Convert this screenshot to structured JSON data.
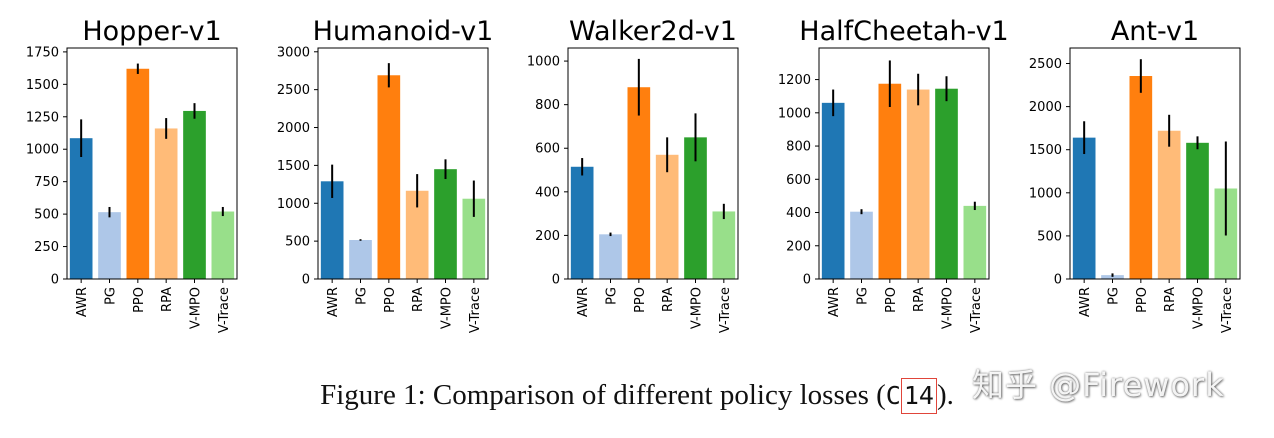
{
  "chart_data": [
    {
      "type": "bar",
      "title": "Hopper-v1",
      "categories": [
        "AWR",
        "PG",
        "PPO",
        "RPA",
        "V-MPO",
        "V-Trace"
      ],
      "values": [
        1085,
        515,
        1620,
        1160,
        1295,
        520
      ],
      "errors": [
        145,
        40,
        40,
        80,
        60,
        35
      ],
      "yticks": [
        0,
        250,
        500,
        750,
        1000,
        1250,
        1500,
        1750
      ],
      "ylim": [
        0,
        1780
      ],
      "xlabel": "",
      "ylabel": ""
    },
    {
      "type": "bar",
      "title": "Humanoid-v1",
      "categories": [
        "AWR",
        "PG",
        "PPO",
        "RPA",
        "V-MPO",
        "V-Trace"
      ],
      "values": [
        1290,
        515,
        2690,
        1165,
        1450,
        1060
      ],
      "errors": [
        220,
        10,
        160,
        220,
        130,
        240
      ],
      "yticks": [
        0,
        500,
        1000,
        1500,
        2000,
        2500,
        3000
      ],
      "ylim": [
        0,
        3050
      ],
      "xlabel": "",
      "ylabel": ""
    },
    {
      "type": "bar",
      "title": "Walker2d-v1",
      "categories": [
        "AWR",
        "PG",
        "PPO",
        "RPA",
        "V-MPO",
        "V-Trace"
      ],
      "values": [
        515,
        205,
        880,
        570,
        650,
        310
      ],
      "errors": [
        40,
        8,
        130,
        80,
        110,
        35
      ],
      "yticks": [
        0,
        200,
        400,
        600,
        800,
        1000
      ],
      "ylim": [
        0,
        1060
      ],
      "xlabel": "",
      "ylabel": ""
    },
    {
      "type": "bar",
      "title": "HalfCheetah-v1",
      "categories": [
        "AWR",
        "PG",
        "PPO",
        "RPA",
        "V-MPO",
        "V-Trace"
      ],
      "values": [
        1060,
        405,
        1175,
        1140,
        1145,
        440
      ],
      "errors": [
        80,
        15,
        140,
        95,
        75,
        25
      ],
      "yticks": [
        0,
        200,
        400,
        600,
        800,
        1000,
        1200
      ],
      "ylim": [
        0,
        1390
      ],
      "xlabel": "",
      "ylabel": ""
    },
    {
      "type": "bar",
      "title": "Ant-v1",
      "categories": [
        "AWR",
        "PG",
        "PPO",
        "RPA",
        "V-MPO",
        "V-Trace"
      ],
      "values": [
        1640,
        45,
        2355,
        1720,
        1580,
        1050
      ],
      "errors": [
        190,
        20,
        195,
        185,
        75,
        545
      ],
      "yticks": [
        0,
        500,
        1000,
        1500,
        2000,
        2500
      ],
      "ylim": [
        0,
        2680
      ],
      "xlabel": "",
      "ylabel": ""
    }
  ],
  "colors": {
    "AWR": "#1f77b4",
    "PG": "#aec7e8",
    "PPO": "#ff7f0e",
    "RPA": "#ffbb78",
    "V-MPO": "#2ca02c",
    "V-Trace": "#98df8a"
  },
  "caption": {
    "text": "Figure 1: Comparison of different policy losses (",
    "ref_prefix": "C",
    "ref_boxed": "14",
    "text_end": ")."
  },
  "watermark": "知乎 @Firework"
}
